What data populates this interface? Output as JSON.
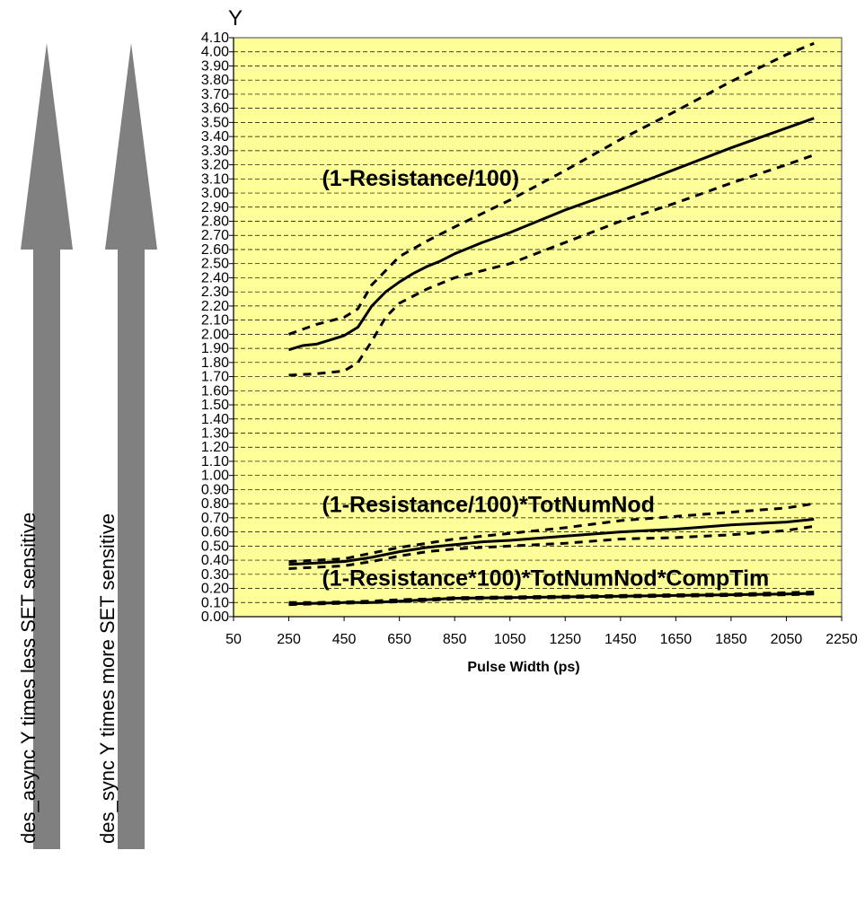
{
  "arrows": {
    "left_label": "des_async Y times less SET sensitive",
    "right_label": "des_sync Y times more SET sensitive",
    "color": "#808080"
  },
  "chart_data": {
    "type": "line",
    "ylabel": "Y",
    "xlabel": "Pulse Width (ps)",
    "xlim": [
      50,
      2250
    ],
    "ylim": [
      0,
      4.1
    ],
    "x_ticks": [
      "50",
      "250",
      "450",
      "650",
      "850",
      "1050",
      "1250",
      "1450",
      "1650",
      "1850",
      "2050",
      "2250"
    ],
    "y_ticks": [
      "0.00",
      "0.10",
      "0.20",
      "0.30",
      "0.40",
      "0.50",
      "0.60",
      "0.70",
      "0.80",
      "0.90",
      "1.00",
      "1.10",
      "1.20",
      "1.30",
      "1.40",
      "1.50",
      "1.60",
      "1.70",
      "1.80",
      "1.90",
      "2.00",
      "2.10",
      "2.20",
      "2.30",
      "2.40",
      "2.50",
      "2.60",
      "2.70",
      "2.80",
      "2.90",
      "3.00",
      "3.10",
      "3.20",
      "3.30",
      "3.40",
      "3.50",
      "3.60",
      "3.70",
      "3.80",
      "3.90",
      "4.00",
      "4.10"
    ],
    "plot_background": "#ffff99",
    "grid": "dashed-horizontal",
    "annotations": [
      {
        "text": "(1-Resistance/100)",
        "x": 370,
        "y": 3.05
      },
      {
        "text": "(1-Resistance/100)*TotNumNod",
        "x": 370,
        "y": 0.74
      },
      {
        "text": "(1-Resistance*100)*TotNumNod*CompTim",
        "x": 370,
        "y": 0.22
      }
    ],
    "series": [
      {
        "style": "solid",
        "points": [
          [
            250,
            1.89
          ],
          [
            300,
            1.92
          ],
          [
            350,
            1.93
          ],
          [
            400,
            1.96
          ],
          [
            450,
            1.99
          ],
          [
            500,
            2.05
          ],
          [
            550,
            2.2
          ],
          [
            600,
            2.3
          ],
          [
            650,
            2.37
          ],
          [
            700,
            2.43
          ],
          [
            750,
            2.48
          ],
          [
            800,
            2.52
          ],
          [
            850,
            2.57
          ],
          [
            950,
            2.65
          ],
          [
            1050,
            2.72
          ],
          [
            1150,
            2.8
          ],
          [
            1250,
            2.88
          ],
          [
            1450,
            3.02
          ],
          [
            1650,
            3.17
          ],
          [
            1850,
            3.32
          ],
          [
            2050,
            3.46
          ],
          [
            2150,
            3.53
          ]
        ]
      },
      {
        "style": "dashed",
        "points": [
          [
            250,
            2.0
          ],
          [
            350,
            2.07
          ],
          [
            450,
            2.12
          ],
          [
            500,
            2.18
          ],
          [
            550,
            2.35
          ],
          [
            600,
            2.45
          ],
          [
            650,
            2.55
          ],
          [
            750,
            2.66
          ],
          [
            850,
            2.76
          ],
          [
            1050,
            2.95
          ],
          [
            1250,
            3.16
          ],
          [
            1450,
            3.38
          ],
          [
            1650,
            3.58
          ],
          [
            1850,
            3.79
          ],
          [
            2050,
            3.98
          ],
          [
            2150,
            4.06
          ]
        ]
      },
      {
        "style": "dashed",
        "points": [
          [
            250,
            1.71
          ],
          [
            350,
            1.72
          ],
          [
            450,
            1.74
          ],
          [
            500,
            1.8
          ],
          [
            550,
            1.95
          ],
          [
            600,
            2.12
          ],
          [
            650,
            2.22
          ],
          [
            750,
            2.32
          ],
          [
            850,
            2.4
          ],
          [
            1050,
            2.5
          ],
          [
            1250,
            2.65
          ],
          [
            1450,
            2.8
          ],
          [
            1650,
            2.93
          ],
          [
            1850,
            3.07
          ],
          [
            2050,
            3.2
          ],
          [
            2150,
            3.27
          ]
        ]
      },
      {
        "style": "solid",
        "points": [
          [
            250,
            0.37
          ],
          [
            350,
            0.38
          ],
          [
            450,
            0.39
          ],
          [
            550,
            0.42
          ],
          [
            650,
            0.46
          ],
          [
            750,
            0.49
          ],
          [
            850,
            0.51
          ],
          [
            950,
            0.53
          ],
          [
            1050,
            0.54
          ],
          [
            1250,
            0.57
          ],
          [
            1450,
            0.6
          ],
          [
            1650,
            0.62
          ],
          [
            1850,
            0.65
          ],
          [
            2050,
            0.67
          ],
          [
            2150,
            0.69
          ]
        ]
      },
      {
        "style": "dashed",
        "points": [
          [
            250,
            0.39
          ],
          [
            350,
            0.4
          ],
          [
            450,
            0.41
          ],
          [
            550,
            0.45
          ],
          [
            650,
            0.49
          ],
          [
            750,
            0.52
          ],
          [
            850,
            0.55
          ],
          [
            1050,
            0.59
          ],
          [
            1250,
            0.63
          ],
          [
            1450,
            0.68
          ],
          [
            1650,
            0.71
          ],
          [
            1850,
            0.74
          ],
          [
            2050,
            0.77
          ],
          [
            2150,
            0.8
          ]
        ]
      },
      {
        "style": "dashed",
        "points": [
          [
            250,
            0.34
          ],
          [
            350,
            0.35
          ],
          [
            450,
            0.36
          ],
          [
            550,
            0.39
          ],
          [
            650,
            0.43
          ],
          [
            750,
            0.46
          ],
          [
            850,
            0.48
          ],
          [
            1050,
            0.5
          ],
          [
            1250,
            0.52
          ],
          [
            1450,
            0.55
          ],
          [
            1650,
            0.56
          ],
          [
            1850,
            0.58
          ],
          [
            2050,
            0.61
          ],
          [
            2150,
            0.64
          ]
        ]
      },
      {
        "style": "solid",
        "points": [
          [
            250,
            0.09
          ],
          [
            350,
            0.095
          ],
          [
            450,
            0.1
          ],
          [
            550,
            0.1
          ],
          [
            650,
            0.11
          ],
          [
            750,
            0.12
          ],
          [
            850,
            0.13
          ],
          [
            1050,
            0.135
          ],
          [
            1250,
            0.14
          ],
          [
            1450,
            0.145
          ],
          [
            1650,
            0.15
          ],
          [
            1850,
            0.155
          ],
          [
            2050,
            0.16
          ],
          [
            2150,
            0.165
          ]
        ]
      },
      {
        "style": "dashed",
        "points": [
          [
            250,
            0.1
          ],
          [
            350,
            0.1
          ],
          [
            450,
            0.105
          ],
          [
            550,
            0.11
          ],
          [
            650,
            0.12
          ],
          [
            750,
            0.125
          ],
          [
            850,
            0.135
          ],
          [
            1050,
            0.14
          ],
          [
            1250,
            0.145
          ],
          [
            1450,
            0.15
          ],
          [
            1650,
            0.155
          ],
          [
            1850,
            0.16
          ],
          [
            2050,
            0.17
          ],
          [
            2150,
            0.175
          ]
        ]
      },
      {
        "style": "dashed",
        "points": [
          [
            250,
            0.085
          ],
          [
            350,
            0.09
          ],
          [
            450,
            0.095
          ],
          [
            550,
            0.1
          ],
          [
            650,
            0.105
          ],
          [
            750,
            0.115
          ],
          [
            850,
            0.125
          ],
          [
            1050,
            0.13
          ],
          [
            1250,
            0.135
          ],
          [
            1450,
            0.14
          ],
          [
            1650,
            0.145
          ],
          [
            1850,
            0.15
          ],
          [
            2050,
            0.155
          ],
          [
            2150,
            0.16
          ]
        ]
      }
    ]
  }
}
